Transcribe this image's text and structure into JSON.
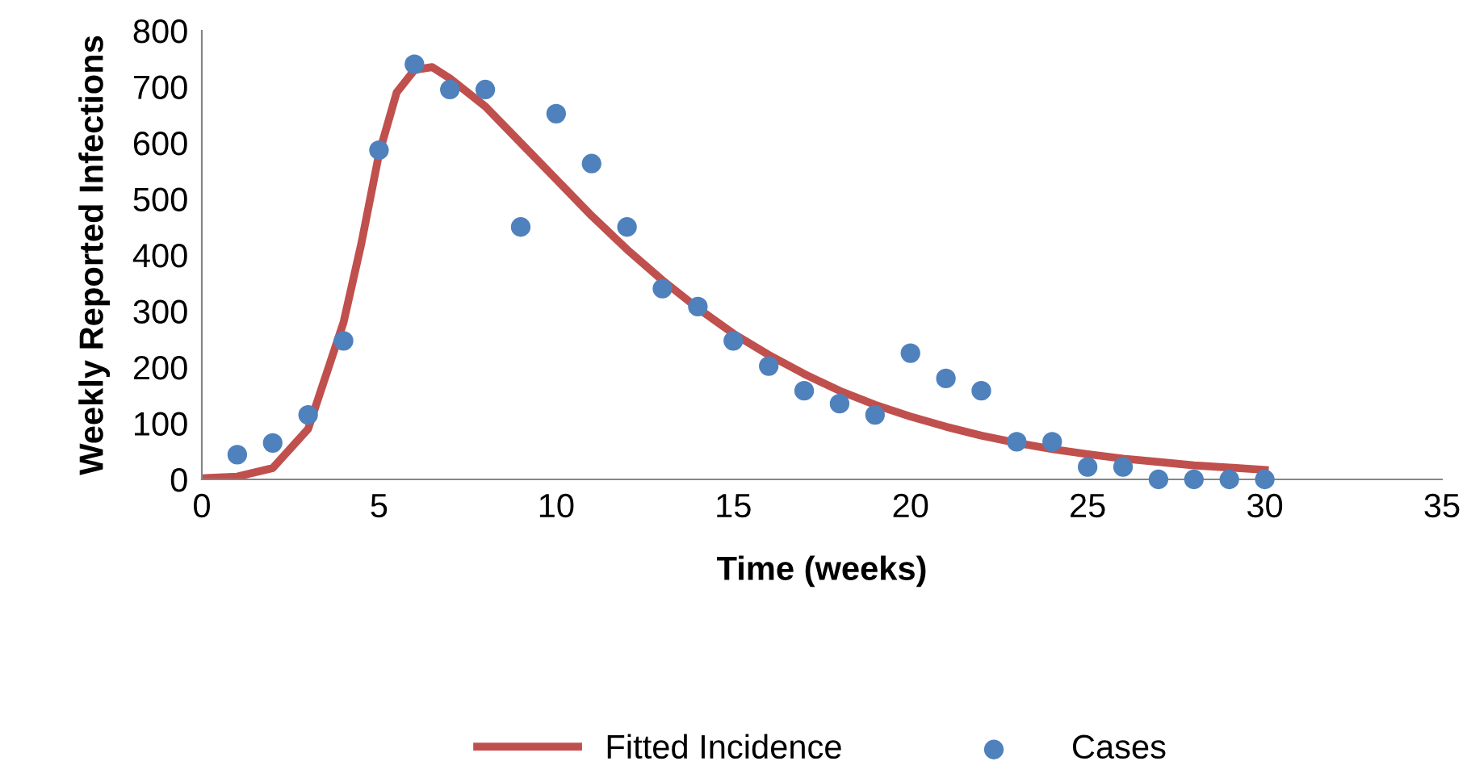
{
  "chart_data": {
    "type": "scatter",
    "xlabel": "Time (weeks)",
    "ylabel": "Weekly Reported Infections",
    "xlim": [
      0,
      35
    ],
    "xticks": [
      0,
      5,
      10,
      15,
      20,
      25,
      30,
      35
    ],
    "ylim": [
      0,
      800
    ],
    "yticks": [
      0,
      100,
      200,
      300,
      400,
      500,
      600,
      700,
      800
    ],
    "grid": false,
    "legend": "bottom",
    "series": [
      {
        "name": "Fitted Incidence",
        "type": "line",
        "color": "#c0504d",
        "marker": "none",
        "line_style": "solid",
        "x": [
          0,
          1,
          2,
          3,
          4,
          4.5,
          5,
          5.5,
          6,
          6.5,
          7,
          8,
          9,
          10,
          11,
          12,
          13,
          14,
          15,
          16,
          17,
          18,
          19,
          20,
          21,
          22,
          23,
          24,
          25,
          26,
          27,
          28,
          29,
          30
        ],
        "values": [
          2,
          5,
          20,
          90,
          280,
          420,
          580,
          690,
          730,
          735,
          715,
          665,
          600,
          535,
          470,
          410,
          355,
          305,
          260,
          222,
          188,
          158,
          133,
          112,
          94,
          78,
          65,
          54,
          45,
          37,
          31,
          25,
          21,
          17
        ]
      },
      {
        "name": "Cases",
        "color": "#4f81bd",
        "marker": "circle",
        "x": [
          1,
          2,
          3,
          4,
          5,
          6,
          7,
          8,
          9,
          10,
          11,
          12,
          13,
          14,
          15,
          16,
          17,
          18,
          19,
          20,
          21,
          22,
          23,
          24,
          25,
          26,
          27,
          28,
          29,
          30
        ],
        "values": [
          44,
          65,
          115,
          247,
          587,
          740,
          695,
          695,
          450,
          652,
          563,
          450,
          340,
          308,
          247,
          202,
          158,
          135,
          115,
          225,
          180,
          158,
          67,
          67,
          22,
          22,
          0,
          0,
          0,
          0
        ]
      }
    ]
  }
}
